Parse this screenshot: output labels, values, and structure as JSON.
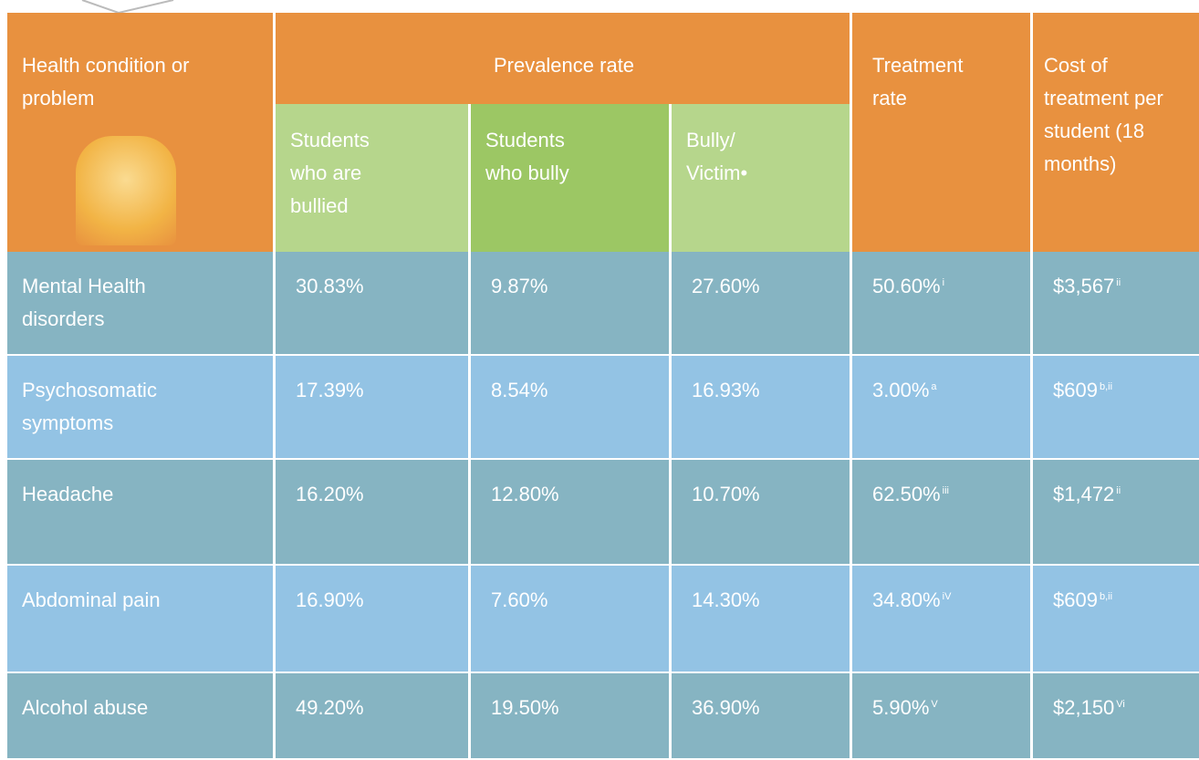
{
  "header": {
    "condition": "Health condition or problem",
    "prevalence": "Prevalence rate",
    "subcolumns": [
      "Students who are bullied",
      "Students who bully",
      "Bully/ Victim•"
    ],
    "treatment": "Treatment rate",
    "cost": "Cost of treatment per student (18 months)"
  },
  "rows": [
    {
      "condition": "Mental Health disorders",
      "bullied": "30.83%",
      "bully": "9.87%",
      "bully_victim": "27.60%",
      "treatment": {
        "value": "50.60%",
        "note": "i"
      },
      "cost": {
        "value": "$3,567",
        "note": "ii"
      }
    },
    {
      "condition": "Psychosomatic symptoms",
      "bullied": "17.39%",
      "bully": "8.54%",
      "bully_victim": "16.93%",
      "treatment": {
        "value": "3.00%",
        "note": "a"
      },
      "cost": {
        "value": "$609",
        "note": "b,ii"
      }
    },
    {
      "condition": "Headache",
      "bullied": "16.20%",
      "bully": "12.80%",
      "bully_victim": "10.70%",
      "treatment": {
        "value": "62.50%",
        "note": "iii"
      },
      "cost": {
        "value": "$1,472",
        "note": "ii"
      }
    },
    {
      "condition": "Abdominal pain",
      "bullied": "16.90%",
      "bully": "7.60%",
      "bully_victim": "14.30%",
      "treatment": {
        "value": "34.80%",
        "note": "iV"
      },
      "cost": {
        "value": "$609",
        "note": "b,ii"
      }
    },
    {
      "condition": "Alcohol abuse",
      "bullied": "49.20%",
      "bully": "19.50%",
      "bully_victim": "36.90%",
      "treatment": {
        "value": "5.90%",
        "note": "V"
      },
      "cost": {
        "value": "$2,150",
        "note": "Vi"
      }
    }
  ]
}
